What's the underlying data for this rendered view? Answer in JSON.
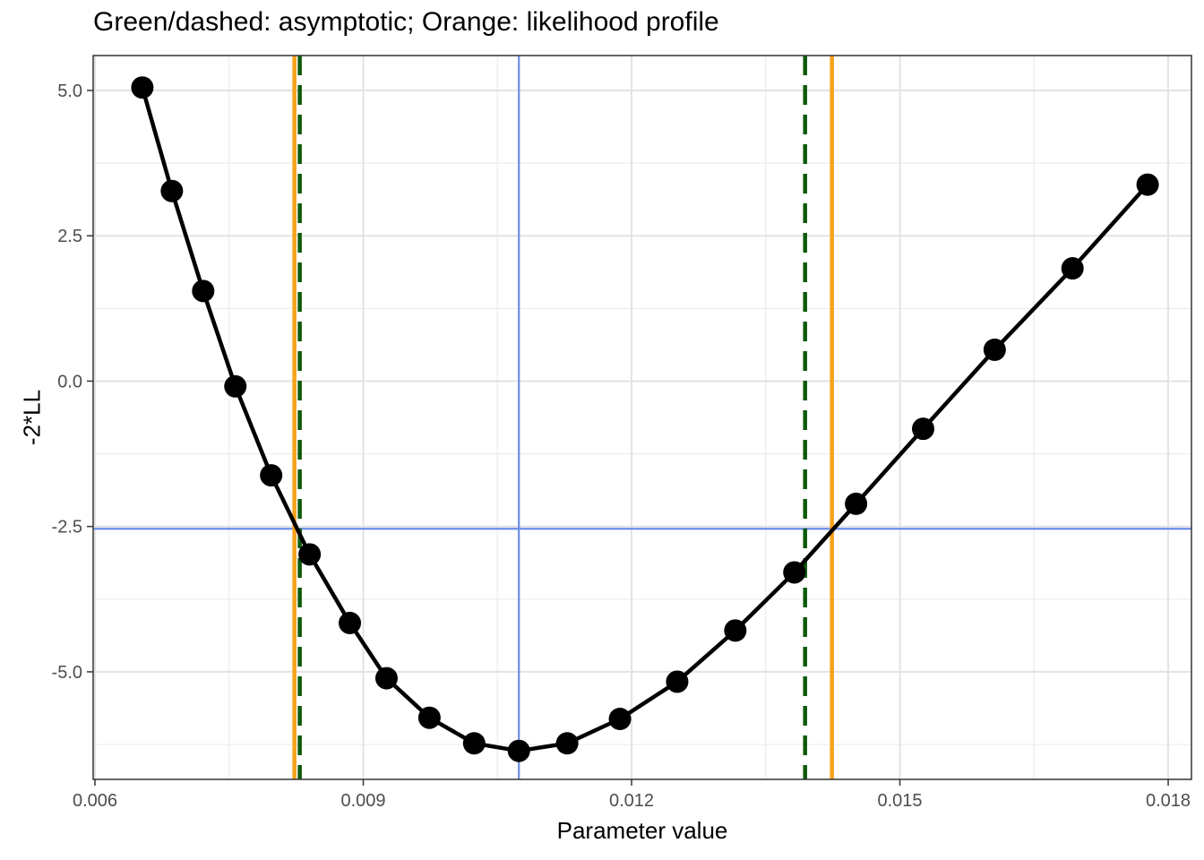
{
  "chart_data": {
    "type": "line",
    "title": "Green/dashed: asymptotic; Orange: likelihood profile",
    "xlabel": "Parameter value",
    "ylabel": "-2*LL",
    "xlim": [
      0.00598,
      0.01826
    ],
    "ylim": [
      -6.85,
      5.6
    ],
    "x_ticks": [
      0.006,
      0.009,
      0.012,
      0.015,
      0.018
    ],
    "x_tick_labels": [
      "0.006",
      "0.009",
      "0.012",
      "0.015",
      "0.018"
    ],
    "y_ticks": [
      -5.0,
      -2.5,
      0.0,
      2.5,
      5.0
    ],
    "y_tick_labels": [
      "-5.0",
      "-2.5",
      "0.0",
      "2.5",
      "5.0"
    ],
    "grid": true,
    "series": [
      {
        "color": "#000000",
        "points": [
          [
            0.00653,
            5.05
          ],
          [
            0.00686,
            3.27
          ],
          [
            0.00721,
            1.55
          ],
          [
            0.00757,
            -0.09
          ],
          [
            0.00797,
            -1.62
          ],
          [
            0.0084,
            -2.98
          ],
          [
            0.00885,
            -4.16
          ],
          [
            0.00926,
            -5.11
          ],
          [
            0.00974,
            -5.79
          ],
          [
            0.01024,
            -6.23
          ],
          [
            0.01074,
            -6.36
          ],
          [
            0.01128,
            -6.23
          ],
          [
            0.01187,
            -5.81
          ],
          [
            0.01251,
            -5.17
          ],
          [
            0.01316,
            -4.29
          ],
          [
            0.01382,
            -3.29
          ],
          [
            0.01451,
            -2.11
          ],
          [
            0.01526,
            -0.82
          ],
          [
            0.01606,
            0.54
          ],
          [
            0.01693,
            1.94
          ],
          [
            0.01777,
            3.38
          ]
        ]
      }
    ],
    "reference_lines": {
      "horizontal_blue": -2.54,
      "vertical_blue": 0.01074,
      "orange_solid": [
        0.00823,
        0.01424
      ],
      "green_dashed": [
        0.00829,
        0.01394
      ]
    },
    "colors": {
      "blue": "#6A8EE6",
      "orange": "#F7A11A",
      "green": "#0B5A0B",
      "line": "#000000"
    }
  }
}
